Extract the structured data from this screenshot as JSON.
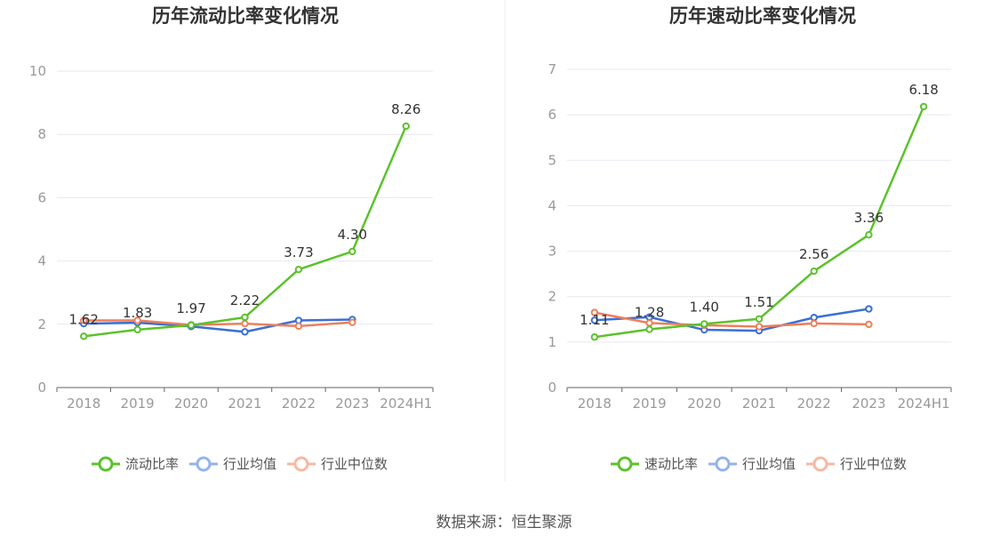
{
  "charts": [
    {
      "title": "历年流动比率变化情况",
      "categories": [
        "2018",
        "2019",
        "2020",
        "2021",
        "2022",
        "2023",
        "2024H1"
      ],
      "ylim": [
        0,
        10
      ],
      "yticks": [
        "0",
        "2",
        "4",
        "6",
        "8",
        "10"
      ],
      "series": [
        {
          "name": "流动比率",
          "color": "#5cc22c",
          "values": [
            1.62,
            1.83,
            1.97,
            2.22,
            3.73,
            4.3,
            8.26
          ],
          "labels": [
            "1.62",
            "1.83",
            "1.97",
            "2.22",
            "3.73",
            "4.30",
            "8.26"
          ]
        },
        {
          "name": "行业均值",
          "color": "#3b6fd6",
          "values": [
            2.02,
            2.05,
            1.93,
            1.76,
            2.12,
            2.15,
            null
          ]
        },
        {
          "name": "行业中位数",
          "color": "#ee7f5a",
          "values": [
            2.12,
            2.12,
            1.98,
            2.02,
            1.94,
            2.06,
            null
          ]
        }
      ]
    },
    {
      "title": "历年速动比率变化情况",
      "categories": [
        "2018",
        "2019",
        "2020",
        "2021",
        "2022",
        "2023",
        "2024H1"
      ],
      "ylim": [
        0,
        7
      ],
      "yticks": [
        "0",
        "1",
        "2",
        "3",
        "4",
        "5",
        "6",
        "7"
      ],
      "series": [
        {
          "name": "速动比率",
          "color": "#5cc22c",
          "values": [
            1.11,
            1.28,
            1.4,
            1.51,
            2.56,
            3.36,
            6.18
          ],
          "labels": [
            "1.11",
            "1.28",
            "1.40",
            "1.51",
            "2.56",
            "3.36",
            "6.18"
          ]
        },
        {
          "name": "行业均值",
          "color": "#3b6fd6",
          "values": [
            1.48,
            1.55,
            1.27,
            1.25,
            1.54,
            1.73,
            null
          ]
        },
        {
          "name": "行业中位数",
          "color": "#ee7f5a",
          "values": [
            1.65,
            1.42,
            1.37,
            1.34,
            1.41,
            1.39,
            null
          ]
        }
      ]
    }
  ],
  "chart_data": [
    {
      "type": "line",
      "title": "历年流动比率变化情况",
      "x": [
        "2018",
        "2019",
        "2020",
        "2021",
        "2022",
        "2023",
        "2024H1"
      ],
      "ylim": [
        0,
        10
      ],
      "grid": true,
      "legend": "bottom-center",
      "series": [
        {
          "name": "流动比率",
          "values": [
            1.62,
            1.83,
            1.97,
            2.22,
            3.73,
            4.3,
            8.26
          ]
        },
        {
          "name": "行业均值",
          "values": [
            2.02,
            2.05,
            1.93,
            1.76,
            2.12,
            2.15,
            null
          ]
        },
        {
          "name": "行业中位数",
          "values": [
            2.12,
            2.12,
            1.98,
            2.02,
            1.94,
            2.06,
            null
          ]
        }
      ]
    },
    {
      "type": "line",
      "title": "历年速动比率变化情况",
      "x": [
        "2018",
        "2019",
        "2020",
        "2021",
        "2022",
        "2023",
        "2024H1"
      ],
      "ylim": [
        0,
        7
      ],
      "grid": true,
      "legend": "bottom-center",
      "series": [
        {
          "name": "速动比率",
          "values": [
            1.11,
            1.28,
            1.4,
            1.51,
            2.56,
            3.36,
            6.18
          ]
        },
        {
          "name": "行业均值",
          "values": [
            1.48,
            1.55,
            1.27,
            1.25,
            1.54,
            1.73,
            null
          ]
        },
        {
          "name": "行业中位数",
          "values": [
            1.65,
            1.42,
            1.37,
            1.34,
            1.41,
            1.39,
            null
          ]
        }
      ]
    }
  ],
  "source": "数据来源：恒生聚源"
}
